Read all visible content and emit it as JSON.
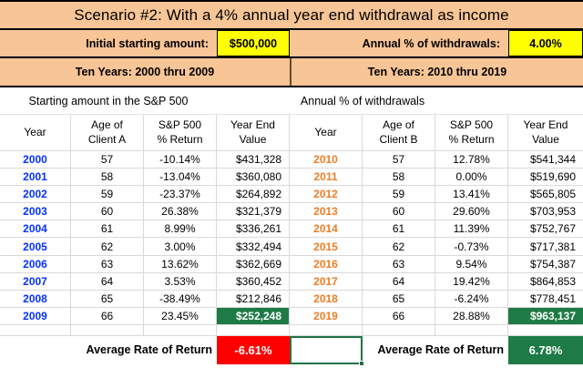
{
  "title": "Scenario #2: With a 4% annual year end withdrawal as income",
  "params": {
    "initial_label": "Initial starting amount:",
    "initial_value": "$500,000",
    "withdrawal_label": "Annual % of withdrawals:",
    "withdrawal_value": "4.00%"
  },
  "colors": {
    "banner_peach": "#F7C596",
    "input_yellow": "#FFFF00",
    "highlight_green": "#1E7B46",
    "negative_red": "#FE0000",
    "year_blue": "#0432FF",
    "year_orange": "#EE7D23",
    "selection_border_green": "#217346",
    "gridline": "#D9D9D9"
  },
  "left_table": {
    "banner": "Ten Years: 2000 thru 2009",
    "subheader": "Starting amount in the S&P 500",
    "headers": [
      "Year",
      "Age of\nClient A",
      "S&P 500\n% Return",
      "Year End\nValue"
    ],
    "rows": [
      {
        "year": "2000",
        "age": "57",
        "ret": "-10.14%",
        "value": "$431,328",
        "highlight": false
      },
      {
        "year": "2001",
        "age": "58",
        "ret": "-13.04%",
        "value": "$360,080",
        "highlight": false
      },
      {
        "year": "2002",
        "age": "59",
        "ret": "-23.37%",
        "value": "$264,892",
        "highlight": false
      },
      {
        "year": "2003",
        "age": "60",
        "ret": "26.38%",
        "value": "$321,379",
        "highlight": false
      },
      {
        "year": "2004",
        "age": "61",
        "ret": "8.99%",
        "value": "$336,261",
        "highlight": false
      },
      {
        "year": "2005",
        "age": "62",
        "ret": "3.00%",
        "value": "$332,494",
        "highlight": false
      },
      {
        "year": "2006",
        "age": "63",
        "ret": "13.62%",
        "value": "$362,669",
        "highlight": false
      },
      {
        "year": "2007",
        "age": "64",
        "ret": "3.53%",
        "value": "$360,452",
        "highlight": false
      },
      {
        "year": "2008",
        "age": "65",
        "ret": "-38.49%",
        "value": "$212,846",
        "highlight": false
      },
      {
        "year": "2009",
        "age": "66",
        "ret": "23.45%",
        "value": "$252,248",
        "highlight": true
      }
    ],
    "avg_label": "Average Rate of Return",
    "avg_value": "-6.61%"
  },
  "right_table": {
    "banner": "Ten Years: 2010 thru 2019",
    "subheader": "Annual % of withdrawals",
    "headers": [
      "Year",
      "Age of\nClient B",
      "S&P 500\n% Return",
      "Year End\nValue"
    ],
    "rows": [
      {
        "year": "2010",
        "age": "57",
        "ret": "12.78%",
        "value": "$541,344",
        "highlight": false
      },
      {
        "year": "2011",
        "age": "58",
        "ret": "0.00%",
        "value": "$519,690",
        "highlight": false
      },
      {
        "year": "2012",
        "age": "59",
        "ret": "13.41%",
        "value": "$565,805",
        "highlight": false
      },
      {
        "year": "2013",
        "age": "60",
        "ret": "29.60%",
        "value": "$703,953",
        "highlight": false
      },
      {
        "year": "2014",
        "age": "61",
        "ret": "11.39%",
        "value": "$752,767",
        "highlight": false
      },
      {
        "year": "2015",
        "age": "62",
        "ret": "-0.73%",
        "value": "$717,381",
        "highlight": false
      },
      {
        "year": "2016",
        "age": "63",
        "ret": "9.54%",
        "value": "$754,387",
        "highlight": false
      },
      {
        "year": "2017",
        "age": "64",
        "ret": "19.42%",
        "value": "$864,853",
        "highlight": false
      },
      {
        "year": "2018",
        "age": "65",
        "ret": "-6.24%",
        "value": "$778,451",
        "highlight": false
      },
      {
        "year": "2019",
        "age": "66",
        "ret": "28.88%",
        "value": "$963,137",
        "highlight": true
      }
    ],
    "avg_label": "Average Rate of Return",
    "avg_value": "6.78%"
  }
}
